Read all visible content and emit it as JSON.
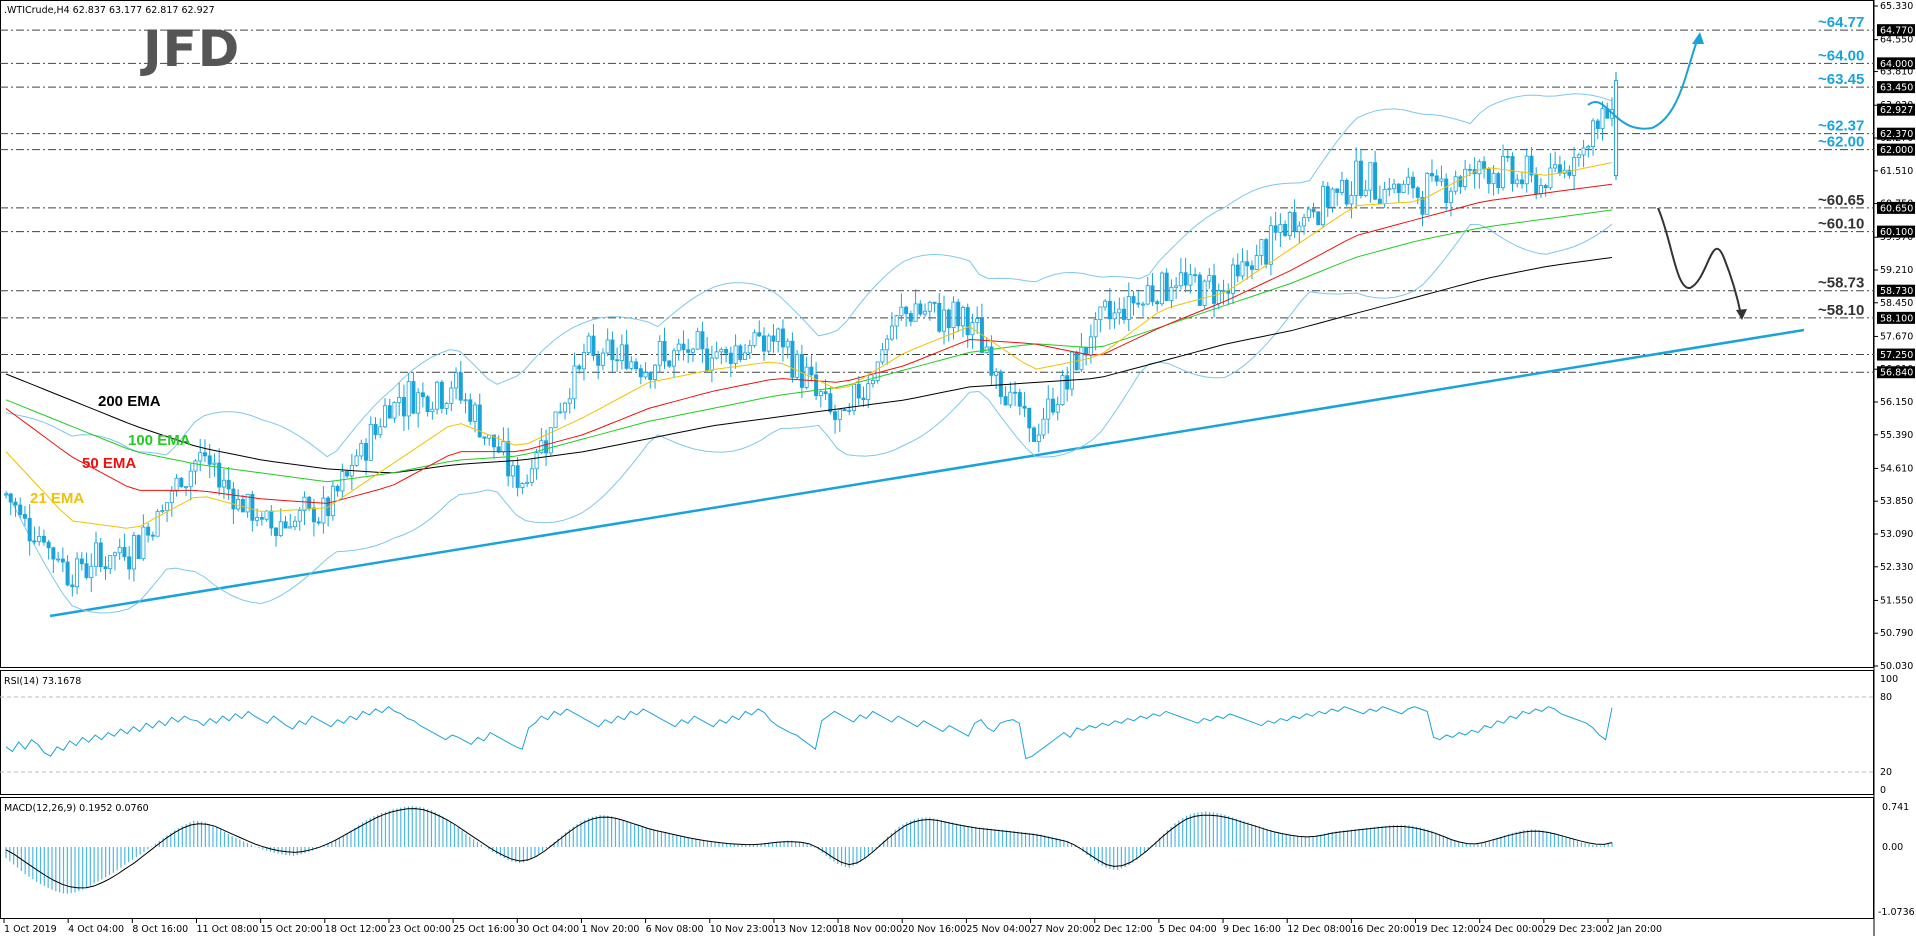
{
  "header": {
    "symbol_line": ".WTICrude,H4  62.837 63.177 62.817 62.927",
    "logo_text": "JFD"
  },
  "price_axis": {
    "ticks": [
      "65.330",
      "64.550",
      "63.810",
      "63.030",
      "62.270",
      "61.510",
      "60.750",
      "59.970",
      "59.210",
      "58.450",
      "57.670",
      "56.910",
      "56.150",
      "55.390",
      "54.610",
      "53.850",
      "53.090",
      "52.330",
      "51.550",
      "50.790",
      "50.030"
    ],
    "badges": [
      {
        "label": "64.770",
        "value": 64.77
      },
      {
        "label": "64.000",
        "value": 64.0
      },
      {
        "label": "63.450",
        "value": 63.45
      },
      {
        "label": "62.927",
        "value": 62.927
      },
      {
        "label": "62.370",
        "value": 62.37
      },
      {
        "label": "62.000",
        "value": 62.0
      },
      {
        "label": "60.650",
        "value": 60.65
      },
      {
        "label": "60.100",
        "value": 60.1
      },
      {
        "label": "58.730",
        "value": 58.73
      },
      {
        "label": "58.100",
        "value": 58.1
      },
      {
        "label": "57.250",
        "value": 57.25
      },
      {
        "label": "56.840",
        "value": 56.84
      }
    ]
  },
  "levels": [
    {
      "label": "~64.77",
      "value": 64.77,
      "color": "#1aa3d9"
    },
    {
      "label": "~64.00",
      "value": 64.0,
      "color": "#1aa3d9"
    },
    {
      "label": "~63.45",
      "value": 63.45,
      "color": "#1aa3d9"
    },
    {
      "label": "~62.37",
      "value": 62.37,
      "color": "#1aa3d9"
    },
    {
      "label": "~62.00",
      "value": 62.0,
      "color": "#1aa3d9"
    },
    {
      "label": "~60.65",
      "value": 60.65,
      "color": "#333333"
    },
    {
      "label": "~60.10",
      "value": 60.1,
      "color": "#333333"
    },
    {
      "label": "~58.73",
      "value": 58.73,
      "color": "#333333"
    },
    {
      "label": "~58.10",
      "value": 58.1,
      "color": "#333333"
    },
    {
      "label": "",
      "value": 57.25,
      "color": "#333333"
    },
    {
      "label": "",
      "value": 56.84,
      "color": "#333333"
    }
  ],
  "ema_labels": [
    {
      "label": "200 EMA",
      "color": "#000000"
    },
    {
      "label": "100 EMA",
      "color": "#22cc22"
    },
    {
      "label": "50 EMA",
      "color": "#ee1111"
    },
    {
      "label": "21 EMA",
      "color": "#f2c200"
    }
  ],
  "rsi": {
    "label": "RSI(14) 73.1678",
    "ticks": [
      "100",
      "80",
      "20",
      "0"
    ],
    "values": [
      40,
      36,
      44,
      38,
      46,
      42,
      35,
      32,
      40,
      37,
      45,
      41,
      48,
      44,
      50,
      46,
      52,
      49,
      55,
      51,
      57,
      53,
      60,
      56,
      62,
      58,
      65,
      61,
      66,
      63,
      62,
      58,
      64,
      60,
      66,
      62,
      68,
      64,
      70,
      66,
      63,
      60,
      66,
      62,
      58,
      55,
      62,
      59,
      66,
      63,
      60,
      57,
      63,
      60,
      66,
      63,
      70,
      67,
      72,
      69,
      74,
      70,
      68,
      64,
      62,
      58,
      55,
      52,
      49,
      46,
      50,
      48,
      45,
      42,
      48,
      45,
      52,
      49,
      46,
      43,
      40,
      38,
      56,
      60,
      66,
      63,
      70,
      67,
      72,
      69,
      66,
      63,
      60,
      57,
      63,
      60,
      66,
      63,
      70,
      67,
      72,
      69,
      66,
      63,
      60,
      57,
      63,
      60,
      66,
      63,
      60,
      57,
      63,
      60,
      66,
      63,
      70,
      67,
      72,
      69,
      62,
      58,
      55,
      52,
      50,
      46,
      42,
      38,
      62,
      66,
      70,
      67,
      64,
      61,
      67,
      64,
      70,
      67,
      64,
      61,
      66,
      63,
      60,
      57,
      62,
      59,
      56,
      53,
      58,
      55,
      52,
      49,
      60,
      63,
      56,
      53,
      60,
      62,
      63,
      60,
      30,
      32,
      36,
      40,
      44,
      48,
      52,
      48,
      56,
      54,
      58,
      56,
      60,
      58,
      62,
      60,
      64,
      62,
      66,
      64,
      68,
      66,
      70,
      68,
      66,
      64,
      62,
      60,
      64,
      62,
      66,
      64,
      68,
      66,
      64,
      62,
      60,
      58,
      62,
      60,
      64,
      62,
      66,
      64,
      68,
      66,
      70,
      68,
      72,
      70,
      74,
      72,
      70,
      68,
      72,
      70,
      74,
      72,
      70,
      68,
      72,
      74,
      72,
      70,
      48,
      46,
      50,
      48,
      52,
      50,
      54,
      52,
      58,
      56,
      62,
      60,
      66,
      64,
      70,
      68,
      72,
      70,
      74,
      72,
      68,
      66,
      64,
      62,
      60,
      56,
      50,
      46,
      73.17
    ]
  },
  "macd": {
    "label": "MACD(12,26,9) 0.1952 0.0760",
    "ticks": [
      "0.741",
      "0.00",
      "-1.0736"
    ],
    "hist": [
      -0.2,
      -0.35,
      -0.5,
      -0.62,
      -0.72,
      -0.8,
      -0.85,
      -0.82,
      -0.75,
      -0.65,
      -0.55,
      -0.45,
      -0.32,
      -0.2,
      -0.08,
      0.05,
      0.18,
      0.3,
      0.4,
      0.48,
      0.45,
      0.38,
      0.28,
      0.18,
      0.1,
      0.02,
      -0.05,
      -0.1,
      -0.14,
      -0.16,
      -0.12,
      -0.06,
      0.02,
      0.1,
      0.2,
      0.32,
      0.45,
      0.55,
      0.62,
      0.68,
      0.72,
      0.74,
      0.72,
      0.66,
      0.56,
      0.44,
      0.3,
      0.16,
      0.04,
      -0.08,
      -0.18,
      -0.26,
      -0.3,
      -0.22,
      -0.1,
      0.05,
      0.2,
      0.34,
      0.46,
      0.54,
      0.58,
      0.56,
      0.5,
      0.44,
      0.38,
      0.32,
      0.28,
      0.24,
      0.2,
      0.16,
      0.12,
      0.1,
      0.08,
      0.06,
      0.05,
      0.04,
      0.06,
      0.08,
      0.1,
      0.12,
      0.1,
      0.06,
      -0.05,
      -0.2,
      -0.32,
      -0.38,
      -0.3,
      -0.16,
      0.02,
      0.2,
      0.36,
      0.46,
      0.52,
      0.54,
      0.5,
      0.46,
      0.42,
      0.38,
      0.36,
      0.34,
      0.32,
      0.3,
      0.28,
      0.26,
      0.24,
      0.2,
      0.16,
      0.12,
      0.02,
      -0.14,
      -0.28,
      -0.38,
      -0.42,
      -0.36,
      -0.24,
      -0.08,
      0.1,
      0.28,
      0.44,
      0.56,
      0.62,
      0.64,
      0.62,
      0.58,
      0.52,
      0.46,
      0.4,
      0.34,
      0.28,
      0.24,
      0.2,
      0.18,
      0.2,
      0.24,
      0.28,
      0.3,
      0.32,
      0.34,
      0.36,
      0.38,
      0.4,
      0.4,
      0.38,
      0.34,
      0.28,
      0.2,
      0.12,
      0.06,
      0.04,
      0.08,
      0.14,
      0.2,
      0.26,
      0.3,
      0.32,
      0.3,
      0.26,
      0.2,
      0.14,
      0.08,
      0.04,
      0.02,
      0.08
    ],
    "signal": [
      -0.05,
      -0.15,
      -0.28,
      -0.4,
      -0.52,
      -0.62,
      -0.7,
      -0.74,
      -0.74,
      -0.7,
      -0.62,
      -0.52,
      -0.4,
      -0.28,
      -0.14,
      0.0,
      0.14,
      0.26,
      0.36,
      0.42,
      0.42,
      0.38,
      0.3,
      0.22,
      0.14,
      0.06,
      0.0,
      -0.05,
      -0.08,
      -0.1,
      -0.08,
      -0.04,
      0.02,
      0.1,
      0.2,
      0.3,
      0.4,
      0.5,
      0.58,
      0.64,
      0.68,
      0.7,
      0.68,
      0.62,
      0.54,
      0.44,
      0.32,
      0.2,
      0.08,
      -0.04,
      -0.14,
      -0.22,
      -0.26,
      -0.22,
      -0.12,
      0.02,
      0.16,
      0.3,
      0.42,
      0.5,
      0.54,
      0.54,
      0.5,
      0.44,
      0.38,
      0.32,
      0.28,
      0.24,
      0.2,
      0.16,
      0.13,
      0.1,
      0.08,
      0.06,
      0.05,
      0.04,
      0.05,
      0.07,
      0.09,
      0.1,
      0.09,
      0.06,
      -0.02,
      -0.14,
      -0.26,
      -0.32,
      -0.28,
      -0.16,
      0.0,
      0.16,
      0.3,
      0.42,
      0.48,
      0.5,
      0.48,
      0.44,
      0.4,
      0.37,
      0.34,
      0.32,
      0.3,
      0.28,
      0.26,
      0.24,
      0.22,
      0.18,
      0.14,
      0.1,
      0.02,
      -0.1,
      -0.22,
      -0.32,
      -0.36,
      -0.32,
      -0.22,
      -0.08,
      0.08,
      0.24,
      0.38,
      0.5,
      0.56,
      0.58,
      0.57,
      0.54,
      0.49,
      0.43,
      0.38,
      0.32,
      0.27,
      0.23,
      0.2,
      0.18,
      0.19,
      0.22,
      0.26,
      0.28,
      0.3,
      0.32,
      0.34,
      0.36,
      0.37,
      0.37,
      0.35,
      0.31,
      0.26,
      0.19,
      0.12,
      0.07,
      0.05,
      0.08,
      0.13,
      0.18,
      0.23,
      0.27,
      0.29,
      0.28,
      0.25,
      0.2,
      0.15,
      0.1,
      0.06,
      0.04,
      0.08
    ]
  },
  "x_axis": {
    "labels": [
      "1 Oct 2019",
      "4 Oct 04:00",
      "8 Oct 16:00",
      "11 Oct 08:00",
      "15 Oct 20:00",
      "18 Oct 12:00",
      "23 Oct 00:00",
      "25 Oct 16:00",
      "30 Oct 04:00",
      "1 Nov 20:00",
      "6 Nov 08:00",
      "10 Nov 23:00",
      "13 Nov 12:00",
      "18 Nov 00:00",
      "20 Nov 16:00",
      "25 Nov 04:00",
      "27 Nov 20:00",
      "2 Dec 12:00",
      "5 Dec 04:00",
      "9 Dec 16:00",
      "12 Dec 08:00",
      "16 Dec 20:00",
      "19 Dec 12:00",
      "24 Dec 00:00",
      "29 Dec 23:00",
      "2 Jan 20:00"
    ]
  },
  "chart_data": {
    "type": "line",
    "title": ".WTICrude,H4",
    "ylim": [
      50.03,
      65.33
    ],
    "close_series_note": "",
    "x": [
      "1 Oct 2019",
      "4 Oct 04:00",
      "8 Oct 16:00",
      "11 Oct 08:00",
      "15 Oct 20:00",
      "18 Oct 12:00",
      "23 Oct 00:00",
      "25 Oct 16:00",
      "30 Oct 04:00",
      "1 Nov 20:00",
      "6 Nov 08:00",
      "10 Nov 23:00",
      "13 Nov 12:00",
      "18 Nov 00:00",
      "20 Nov 16:00",
      "25 Nov 04:00",
      "27 Nov 20:00",
      "2 Dec 12:00",
      "5 Dec 04:00",
      "9 Dec 16:00",
      "12 Dec 08:00",
      "16 Dec 20:00",
      "19 Dec 12:00",
      "24 Dec 00:00",
      "29 Dec 23:00",
      "2 Jan 20:00"
    ],
    "series": [
      {
        "name": "",
        "values": [
          54.0,
          52.2,
          52.8,
          54.9,
          53.3,
          53.6,
          56.2,
          56.5,
          54.2,
          57.2,
          57.1,
          57.3,
          57.6,
          55.6,
          58.3,
          58.0,
          55.3,
          58.0,
          58.9,
          58.8,
          60.3,
          61.3,
          61.0,
          61.6,
          61.2,
          62.93
        ]
      },
      {
        "name": "200 EMA",
        "values": [
          56.8,
          56.2,
          55.6,
          55.1,
          54.8,
          54.6,
          54.5,
          54.7,
          54.8,
          55.0,
          55.3,
          55.6,
          55.8,
          56.0,
          56.2,
          56.5,
          56.6,
          56.7,
          57.1,
          57.5,
          57.8,
          58.2,
          58.6,
          59.0,
          59.3,
          59.5
        ]
      },
      {
        "name": "100 EMA",
        "values": [
          56.2,
          55.6,
          55.0,
          54.7,
          54.5,
          54.3,
          54.5,
          54.8,
          54.9,
          55.3,
          55.7,
          56.0,
          56.3,
          56.5,
          56.9,
          57.3,
          57.5,
          57.4,
          57.9,
          58.4,
          58.9,
          59.5,
          59.9,
          60.2,
          60.4,
          60.6
        ]
      },
      {
        "name": "50 EMA",
        "values": [
          56.0,
          54.9,
          54.1,
          54.1,
          53.9,
          53.8,
          54.2,
          55.0,
          55.0,
          55.4,
          56.0,
          56.4,
          56.7,
          56.6,
          57.0,
          57.6,
          57.5,
          57.2,
          57.9,
          58.5,
          59.2,
          60.0,
          60.4,
          60.8,
          61.0,
          61.2
        ]
      },
      {
        "name": "21 EMA",
        "values": [
          55.0,
          53.4,
          53.2,
          54.0,
          53.6,
          53.7,
          54.7,
          55.7,
          55.1,
          55.8,
          56.6,
          56.9,
          57.1,
          56.4,
          57.3,
          57.9,
          56.9,
          57.2,
          58.3,
          58.7,
          59.7,
          60.7,
          60.8,
          61.6,
          61.4,
          61.7
        ]
      }
    ],
    "levels": [
      64.77,
      64.0,
      63.45,
      62.37,
      62.0,
      60.65,
      60.1,
      58.73,
      58.1,
      57.25,
      56.84
    ]
  }
}
